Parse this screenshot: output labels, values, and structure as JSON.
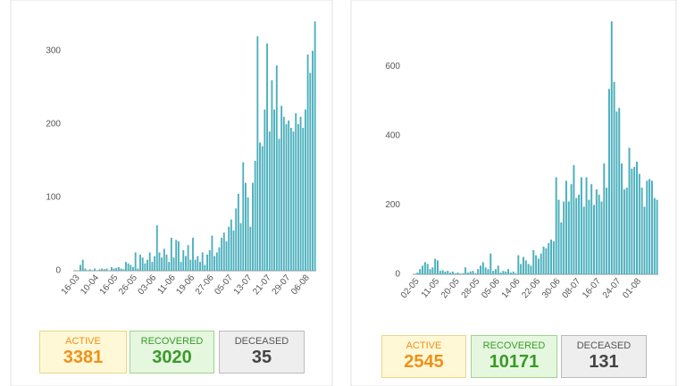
{
  "chart_data": [
    {
      "type": "bar",
      "color": "#4cb0bd",
      "ylim": [
        0,
        345
      ],
      "yticks": [
        0,
        100,
        200,
        300
      ],
      "grid": false,
      "categories": [
        "16-03",
        null,
        null,
        null,
        null,
        null,
        null,
        null,
        "10-04",
        null,
        null,
        null,
        null,
        null,
        null,
        null,
        "16-05",
        null,
        null,
        null,
        null,
        null,
        null,
        null,
        "26-05",
        null,
        null,
        null,
        null,
        null,
        null,
        null,
        "03-06",
        null,
        null,
        null,
        null,
        null,
        null,
        null,
        "11-06",
        null,
        null,
        null,
        null,
        null,
        null,
        null,
        "19-06",
        null,
        null,
        null,
        null,
        null,
        null,
        null,
        "27-06",
        null,
        null,
        null,
        null,
        null,
        null,
        null,
        "05-07",
        null,
        null,
        null,
        null,
        null,
        null,
        null,
        "13-07",
        null,
        null,
        null,
        null,
        null,
        null,
        null,
        "21-07",
        null,
        null,
        null,
        null,
        null,
        null,
        null,
        "29-07",
        null,
        null,
        null,
        null,
        null,
        null,
        null,
        "06-08",
        null,
        null,
        null
      ],
      "values": [
        0,
        8,
        15,
        3,
        0,
        2,
        0,
        3,
        0,
        2,
        3,
        2,
        3,
        0,
        5,
        3,
        4,
        5,
        3,
        2,
        12,
        10,
        8,
        5,
        25,
        3,
        22,
        18,
        10,
        15,
        25,
        12,
        20,
        62,
        25,
        18,
        30,
        22,
        12,
        45,
        18,
        42,
        40,
        12,
        28,
        20,
        35,
        15,
        45,
        15,
        20,
        12,
        25,
        8,
        22,
        28,
        48,
        20,
        25,
        32,
        45,
        52,
        40,
        60,
        70,
        55,
        85,
        105,
        65,
        148,
        120,
        100,
        60,
        120,
        150,
        320,
        175,
        170,
        220,
        310,
        190,
        260,
        220,
        280,
        180,
        225,
        210,
        200,
        205,
        195,
        190,
        215,
        200,
        210,
        195,
        220,
        295,
        270,
        300,
        340
      ]
    },
    {
      "type": "bar",
      "color": "#4cb0bd",
      "ylim": [
        0,
        740
      ],
      "yticks": [
        0,
        200,
        400,
        600
      ],
      "grid": false,
      "categories": [
        "02-05",
        null,
        null,
        null,
        null,
        null,
        null,
        null,
        "11-05",
        null,
        null,
        null,
        null,
        null,
        null,
        null,
        "20-05",
        null,
        null,
        null,
        null,
        null,
        null,
        null,
        "28-05",
        null,
        null,
        null,
        null,
        null,
        null,
        null,
        "05-06",
        null,
        null,
        null,
        null,
        null,
        null,
        null,
        "14-06",
        null,
        null,
        null,
        null,
        null,
        null,
        null,
        "22-06",
        null,
        null,
        null,
        null,
        null,
        null,
        null,
        "30-06",
        null,
        null,
        null,
        null,
        null,
        null,
        null,
        "08-07",
        null,
        null,
        null,
        null,
        null,
        null,
        null,
        "16-07",
        null,
        null,
        null,
        null,
        null,
        null,
        null,
        "24-07",
        null,
        null,
        null,
        null,
        null,
        null,
        null,
        "01-08",
        null,
        null,
        null,
        null,
        null,
        null,
        null
      ],
      "values": [
        5,
        15,
        25,
        35,
        30,
        15,
        20,
        45,
        40,
        10,
        12,
        8,
        10,
        5,
        8,
        3,
        5,
        2,
        3,
        20,
        5,
        8,
        10,
        3,
        15,
        25,
        35,
        20,
        15,
        60,
        10,
        15,
        25,
        5,
        10,
        8,
        15,
        5,
        8,
        3,
        55,
        30,
        50,
        40,
        30,
        25,
        70,
        55,
        45,
        60,
        80,
        75,
        90,
        100,
        95,
        280,
        215,
        150,
        210,
        270,
        210,
        260,
        315,
        220,
        230,
        280,
        195,
        280,
        215,
        260,
        200,
        245,
        230,
        210,
        320,
        250,
        535,
        730,
        555,
        470,
        480,
        320,
        245,
        250,
        365,
        305,
        310,
        325,
        290,
        250,
        195,
        270,
        275,
        270,
        220,
        215
      ]
    }
  ],
  "stats": [
    [
      {
        "label": "ACTIVE",
        "value": 3381
      },
      {
        "label": "RECOVERED",
        "value": 3020
      },
      {
        "label": "DECEASED",
        "value": 35
      }
    ],
    [
      {
        "label": "ACTIVE",
        "value": 2545
      },
      {
        "label": "RECOVERED",
        "value": 10171
      },
      {
        "label": "DECEASED",
        "value": 131
      }
    ]
  ]
}
